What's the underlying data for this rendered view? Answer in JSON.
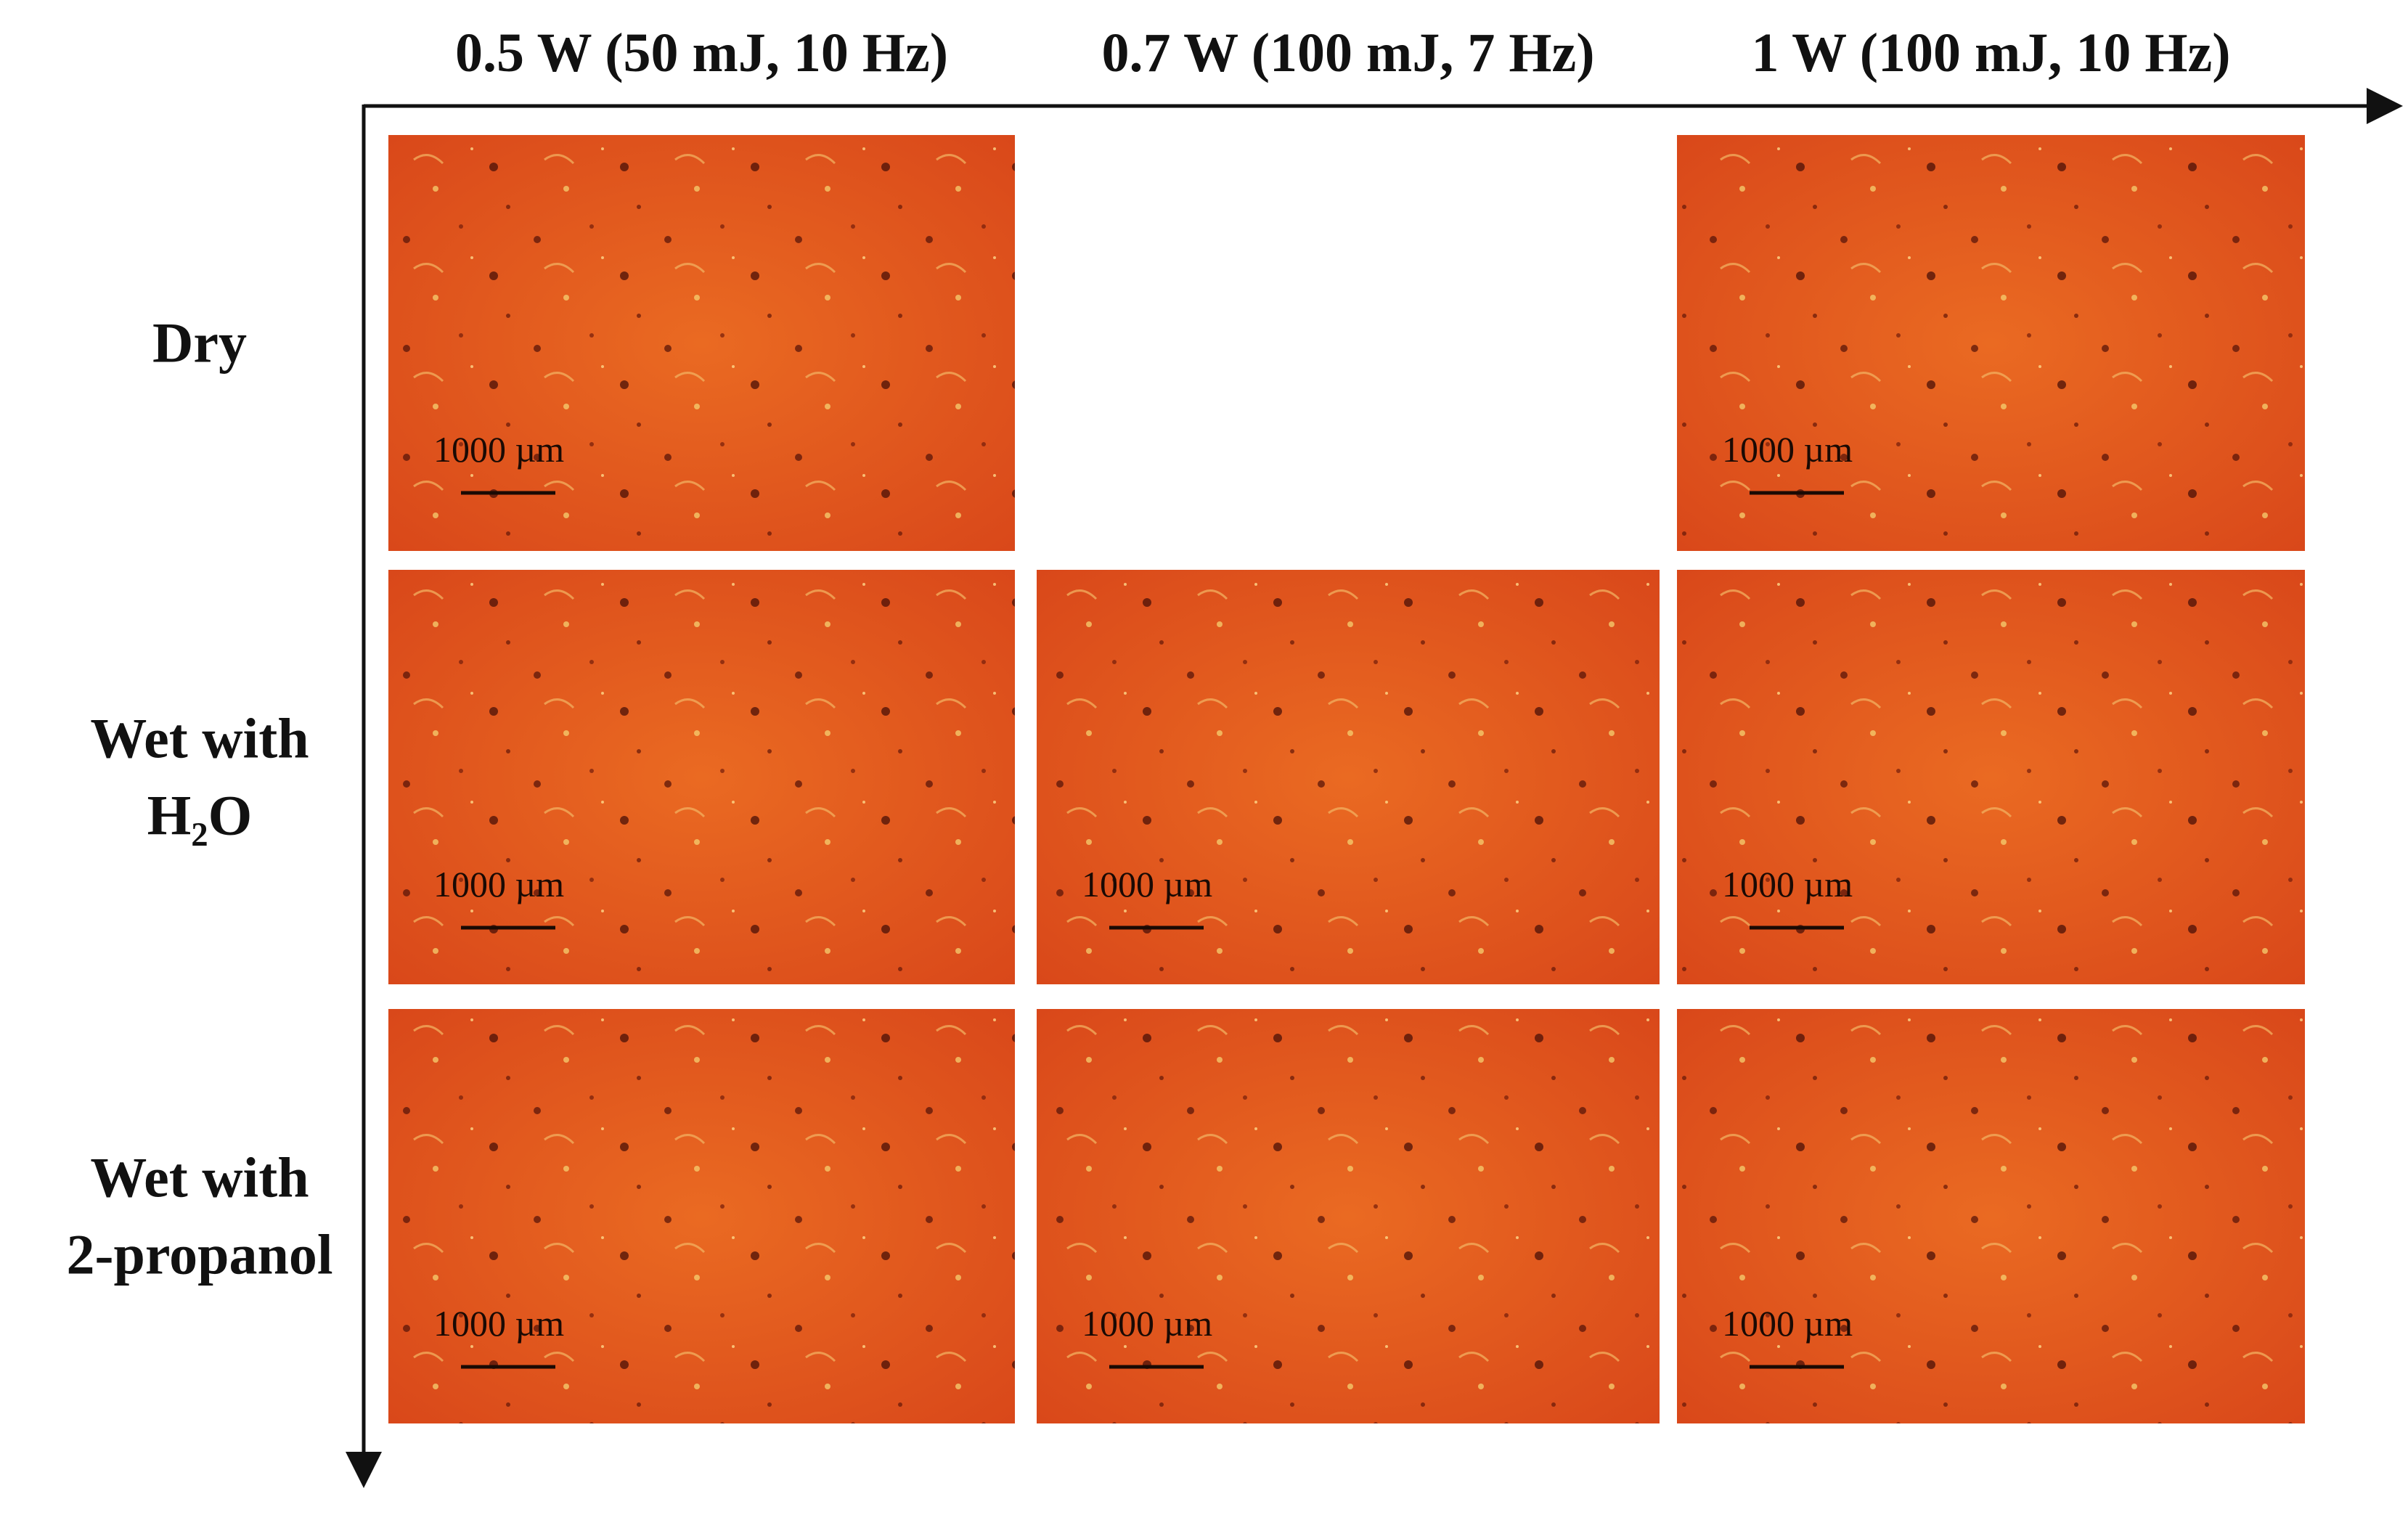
{
  "column_headers": [
    "0.5 W (50 mJ, 10 Hz)",
    "0.7 W (100 mJ, 7 Hz)",
    "1 W (100 mJ, 10 Hz)"
  ],
  "rows": [
    {
      "label_lines": [
        "Dry"
      ],
      "cells": [
        {
          "scale_label": "1000 µm"
        },
        null,
        {
          "scale_label": "1000 µm"
        }
      ]
    },
    {
      "label_lines": [
        "Wet with",
        "H₂O"
      ],
      "cells": [
        {
          "scale_label": "1000 µm"
        },
        {
          "scale_label": "1000 µm"
        },
        {
          "scale_label": "1000 µm"
        }
      ]
    },
    {
      "label_lines": [
        "Wet with",
        "2-propanol"
      ],
      "cells": [
        {
          "scale_label": "1000 µm"
        },
        {
          "scale_label": "1000 µm"
        },
        {
          "scale_label": "1000 µm"
        }
      ]
    }
  ]
}
